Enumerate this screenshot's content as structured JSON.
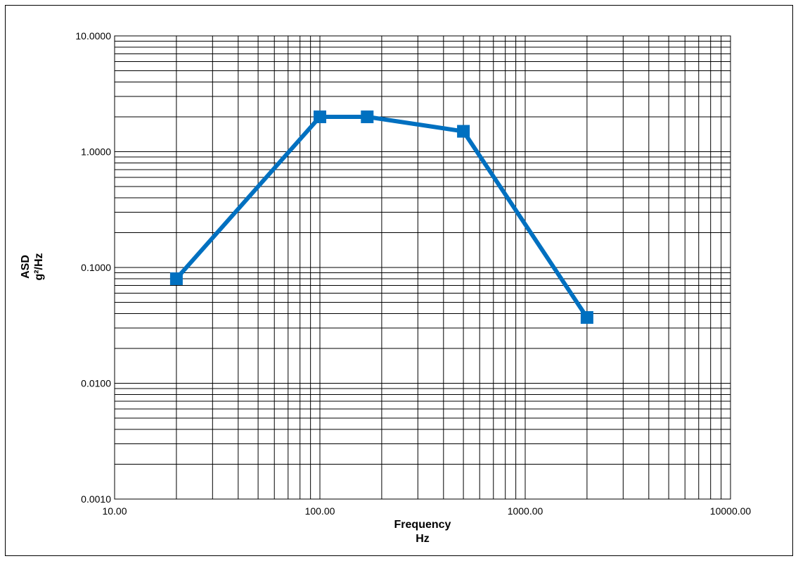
{
  "chart_data": {
    "type": "line",
    "title": "",
    "xlabel": [
      "Frequency",
      "Hz"
    ],
    "ylabel": [
      "ASD",
      "g²/Hz"
    ],
    "xscale": "log",
    "yscale": "log",
    "xlim": [
      10,
      10000
    ],
    "ylim": [
      0.001,
      10
    ],
    "grid": true,
    "legend": "none",
    "x_ticks": [
      10,
      100,
      1000,
      10000
    ],
    "x_tick_labels": [
      "10.00",
      "100.00",
      "1000.00",
      "10000.00"
    ],
    "y_ticks": [
      10,
      1,
      0.1,
      0.01,
      0.001
    ],
    "y_tick_labels": [
      "10.0000",
      "1.0000",
      "0.1000",
      "0.0100",
      "0.0010"
    ],
    "series": [
      {
        "x": [
          20,
          100,
          170,
          500,
          2000
        ],
        "y": [
          0.08,
          2.0,
          2.0,
          1.5,
          0.037
        ],
        "color": "#0070C0",
        "marker": "square"
      }
    ]
  }
}
